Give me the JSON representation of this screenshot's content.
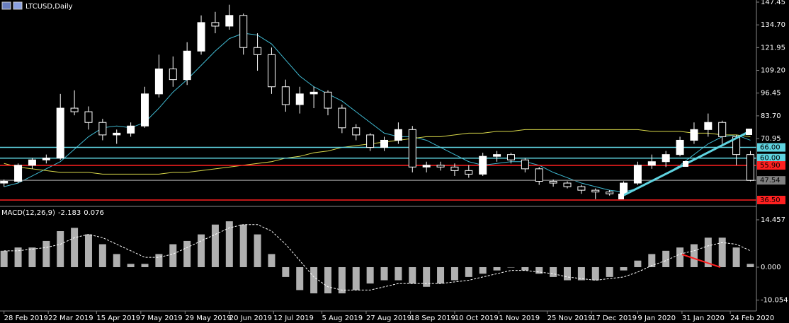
{
  "chart_data": [
    {
      "type": "candlestick",
      "title": "LTCUSD,Daily",
      "x": [
        "2019-02-28",
        "2019-03-07",
        "2019-03-14",
        "2019-03-21",
        "2019-03-28",
        "2019-04-04",
        "2019-04-11",
        "2019-04-18",
        "2019-04-25",
        "2019-05-02",
        "2019-05-09",
        "2019-05-16",
        "2019-05-23",
        "2019-05-30",
        "2019-06-06",
        "2019-06-13",
        "2019-06-20",
        "2019-06-27",
        "2019-07-04",
        "2019-07-11",
        "2019-07-18",
        "2019-07-25",
        "2019-08-01",
        "2019-08-08",
        "2019-08-15",
        "2019-08-22",
        "2019-08-29",
        "2019-09-05",
        "2019-09-12",
        "2019-09-19",
        "2019-09-26",
        "2019-10-03",
        "2019-10-10",
        "2019-10-17",
        "2019-10-24",
        "2019-10-31",
        "2019-11-07",
        "2019-11-14",
        "2019-11-21",
        "2019-11-28",
        "2019-12-05",
        "2019-12-12",
        "2019-12-19",
        "2019-12-26",
        "2020-01-02",
        "2020-01-09",
        "2020-01-16",
        "2020-01-23",
        "2020-01-30",
        "2020-02-06",
        "2020-02-13",
        "2020-02-20",
        "2020-02-27",
        "2020-03-05"
      ],
      "open": [
        46,
        47,
        56,
        59,
        60,
        88,
        86,
        80,
        73,
        74,
        78,
        96,
        110,
        104,
        120,
        136,
        134,
        140,
        122,
        118,
        100,
        90,
        96,
        97,
        88,
        77,
        73,
        66,
        70,
        76,
        55,
        56,
        55,
        53,
        51,
        61,
        62,
        59,
        54,
        47,
        46,
        44,
        42,
        41,
        40,
        46,
        56,
        58,
        62,
        70,
        76,
        80,
        72,
        62
      ],
      "high": [
        48,
        57,
        60,
        62,
        96,
        98,
        89,
        82,
        76,
        80,
        100,
        118,
        117,
        125,
        140,
        142,
        146,
        141,
        130,
        122,
        104,
        100,
        100,
        98,
        90,
        79,
        74,
        72,
        80,
        78,
        58,
        58,
        57,
        56,
        63,
        64,
        63,
        60,
        55,
        48,
        47,
        45,
        43,
        42,
        47,
        58,
        62,
        64,
        72,
        80,
        85,
        81,
        73,
        64
      ],
      "low": [
        44,
        46,
        54,
        57,
        59,
        84,
        76,
        70,
        68,
        72,
        77,
        94,
        100,
        101,
        118,
        130,
        132,
        118,
        109,
        96,
        86,
        85,
        88,
        84,
        74,
        70,
        64,
        64,
        68,
        52,
        52,
        53,
        50,
        49,
        50,
        58,
        57,
        52,
        45,
        44,
        43,
        40,
        37,
        39,
        39,
        45,
        54,
        55,
        61,
        68,
        72,
        68,
        56,
        47
      ],
      "close": [
        47,
        56,
        59,
        60,
        88,
        86,
        80,
        73,
        74,
        78,
        96,
        110,
        104,
        120,
        136,
        134,
        140,
        122,
        118,
        100,
        90,
        96,
        97,
        88,
        77,
        73,
        66,
        70,
        76,
        55,
        56,
        55,
        53,
        51,
        61,
        62,
        59,
        54,
        47,
        46,
        44,
        42,
        41,
        40,
        46,
        56,
        58,
        62,
        70,
        76,
        80,
        72,
        62,
        47.54
      ],
      "lines": [
        {
          "color": "#3fb8d0",
          "values": [
            44,
            46,
            50,
            54,
            58,
            65,
            72,
            77,
            78,
            77,
            80,
            88,
            97,
            104,
            112,
            120,
            127,
            130,
            129,
            124,
            115,
            106,
            100,
            96,
            92,
            86,
            80,
            74,
            72,
            72,
            70,
            66,
            62,
            58,
            56,
            57,
            58,
            58,
            56,
            52,
            49,
            46,
            44,
            42,
            41,
            43,
            47,
            51,
            56,
            62,
            68,
            72,
            73,
            70
          ]
        },
        {
          "color": "#d8d84a",
          "values": [
            57,
            55,
            54,
            53,
            52,
            52,
            52,
            51,
            51,
            51,
            51,
            51,
            52,
            52,
            53,
            54,
            55,
            56,
            57,
            58,
            60,
            61,
            63,
            64,
            66,
            67,
            68,
            69,
            70,
            71,
            72,
            72,
            73,
            74,
            74,
            75,
            75,
            76,
            76,
            76,
            76,
            76,
            76,
            76,
            76,
            76,
            75,
            75,
            75,
            74,
            74,
            73,
            73,
            72
          ]
        }
      ],
      "ylim": [
        33.73,
        148.64
      ],
      "yticks": [
        147.45,
        {
          "value": 134.7,
          "label": "134.70"
        },
        121.95,
        {
          "value": 109.2,
          "label": "109.20"
        },
        96.45,
        {
          "value": 83.7,
          "label": "83.70"
        },
        70.95
      ],
      "levels": [
        {
          "value": 66,
          "label": "66.00",
          "color": "#5fd3e0"
        },
        {
          "value": 60,
          "label": "60.00",
          "color": "#5fd3e0"
        },
        {
          "value": 55.9,
          "label": "55.90",
          "color": "#ff2020"
        },
        {
          "value": 47.54,
          "label": "47.54",
          "color": "#808080"
        },
        {
          "value": 36.5,
          "label": "36.50",
          "color": "#ff2020"
        }
      ],
      "xlim": [
        "2019-02-26",
        "2020-03-08"
      ],
      "xticks": [
        {
          "value": "2019-02-28",
          "label": "28 Feb 2019"
        },
        {
          "value": "2019-03-22",
          "label": "22 Mar 2019"
        },
        {
          "value": "2019-04-15",
          "label": "15 Apr 2019"
        },
        {
          "value": "2019-05-07",
          "label": "7 May 2019"
        },
        {
          "value": "2019-05-29",
          "label": "29 May 2019"
        },
        {
          "value": "2019-06-20",
          "label": "20 Jun 2019"
        },
        {
          "value": "2019-07-12",
          "label": "12 Jul 2019"
        },
        {
          "value": "2019-08-05",
          "label": "5 Aug 2019"
        },
        {
          "value": "2019-08-27",
          "label": "27 Aug 2019"
        },
        {
          "value": "2019-09-18",
          "label": "18 Sep 2019"
        },
        {
          "value": "2019-10-10",
          "label": "10 Oct 2019"
        },
        {
          "value": "2019-11-01",
          "label": "1 Nov 2019"
        },
        {
          "value": "2019-11-25",
          "label": "25 Nov 2019"
        },
        {
          "value": "2019-12-17",
          "label": "17 Dec 2019"
        },
        {
          "value": "2020-01-09",
          "label": "9 Jan 2020"
        },
        {
          "value": "2020-01-31",
          "label": "31 Jan 2020"
        },
        {
          "value": "2020-02-24",
          "label": "24 Feb 2020"
        }
      ]
    },
    {
      "type": "macd",
      "title": "MACD(12,26,9)",
      "readout": [
        -2.183,
        0.076
      ],
      "histogram": [
        5,
        6,
        6,
        8,
        11,
        12,
        10,
        7,
        4,
        1,
        1,
        4,
        7,
        8,
        10,
        13,
        14,
        13,
        10,
        4,
        -3,
        -7,
        -8,
        -8,
        -8,
        -7,
        -5,
        -4,
        -4,
        -5,
        -6,
        -5,
        -4,
        -3,
        -2,
        -1,
        0,
        -1,
        -2,
        -3,
        -4,
        -4,
        -4,
        -3,
        -1,
        2,
        4,
        5,
        6,
        7,
        9,
        9,
        6,
        1
      ],
      "signal": [
        5,
        5,
        5.5,
        6,
        7,
        9,
        10,
        9,
        7,
        5,
        3,
        3,
        4,
        6,
        8,
        10,
        12,
        13,
        13,
        11,
        7,
        2,
        -3,
        -6,
        -7,
        -7,
        -7,
        -6,
        -5,
        -5,
        -5,
        -5,
        -4.5,
        -4,
        -3,
        -2,
        -1,
        -1,
        -1.5,
        -2,
        -3,
        -3.5,
        -4,
        -3.5,
        -3,
        -1.5,
        0.5,
        2,
        4,
        5,
        6.5,
        7.5,
        7,
        5
      ],
      "ylim": [
        -13.38,
        17.69
      ],
      "yticks": [
        14.457,
        {
          "value": 0,
          "label": "0.000"
        },
        -10.054
      ]
    }
  ]
}
